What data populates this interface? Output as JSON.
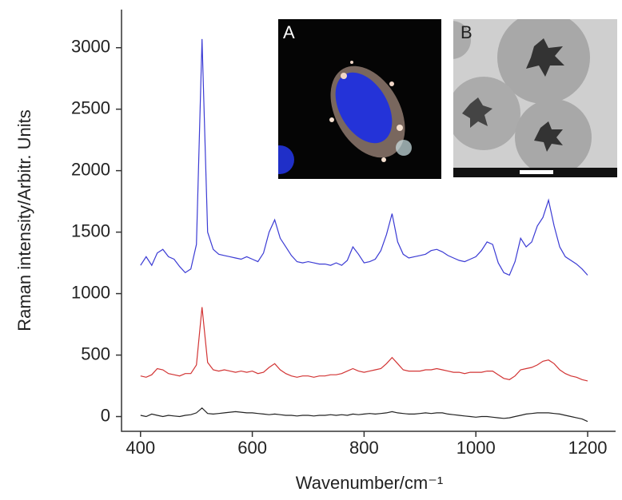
{
  "chart_data": {
    "type": "line",
    "y_label": "Raman intensity/Arbitr. Units",
    "x_label": "Wavenumber/cm⁻¹",
    "annotations": [
      "A",
      "B"
    ],
    "x": [
      400,
      410,
      420,
      430,
      440,
      450,
      460,
      470,
      480,
      490,
      500,
      510,
      520,
      530,
      540,
      550,
      560,
      570,
      580,
      590,
      600,
      610,
      620,
      630,
      640,
      650,
      660,
      670,
      680,
      690,
      700,
      710,
      720,
      730,
      740,
      750,
      760,
      770,
      780,
      790,
      800,
      810,
      820,
      830,
      840,
      850,
      860,
      870,
      880,
      890,
      900,
      910,
      920,
      930,
      940,
      950,
      960,
      970,
      980,
      990,
      1000,
      1010,
      1020,
      1030,
      1040,
      1050,
      1060,
      1070,
      1080,
      1090,
      1100,
      1110,
      1120,
      1130,
      1140,
      1150,
      1160,
      1170,
      1180,
      1190,
      1200
    ],
    "series": [
      {
        "color": "#3b3bd4",
        "values": [
          1230,
          1300,
          1230,
          1330,
          1360,
          1300,
          1280,
          1220,
          1170,
          1200,
          1400,
          3070,
          1500,
          1360,
          1320,
          1310,
          1300,
          1290,
          1280,
          1300,
          1280,
          1260,
          1330,
          1500,
          1600,
          1450,
          1380,
          1310,
          1260,
          1250,
          1260,
          1250,
          1240,
          1240,
          1230,
          1250,
          1230,
          1270,
          1380,
          1320,
          1250,
          1260,
          1280,
          1350,
          1480,
          1650,
          1420,
          1320,
          1290,
          1300,
          1310,
          1320,
          1350,
          1360,
          1340,
          1310,
          1290,
          1270,
          1260,
          1280,
          1300,
          1350,
          1420,
          1400,
          1250,
          1170,
          1150,
          1260,
          1450,
          1380,
          1420,
          1550,
          1620,
          1760,
          1550,
          1380,
          1300,
          1270,
          1240,
          1200,
          1150
        ]
      },
      {
        "color": "#d23434",
        "values": [
          330,
          320,
          340,
          390,
          380,
          350,
          340,
          330,
          350,
          350,
          420,
          890,
          440,
          380,
          370,
          380,
          370,
          360,
          370,
          360,
          370,
          350,
          360,
          400,
          430,
          380,
          350,
          330,
          320,
          330,
          330,
          320,
          330,
          330,
          340,
          340,
          350,
          370,
          390,
          370,
          360,
          370,
          380,
          390,
          430,
          480,
          430,
          380,
          370,
          370,
          370,
          380,
          380,
          390,
          380,
          370,
          360,
          360,
          350,
          360,
          360,
          360,
          370,
          370,
          340,
          310,
          300,
          330,
          380,
          390,
          400,
          420,
          450,
          460,
          430,
          380,
          350,
          330,
          320,
          300,
          290
        ]
      },
      {
        "color": "#222222",
        "values": [
          10,
          0,
          20,
          10,
          0,
          10,
          5,
          0,
          10,
          15,
          30,
          70,
          25,
          20,
          25,
          30,
          35,
          40,
          35,
          30,
          30,
          25,
          20,
          15,
          20,
          15,
          10,
          10,
          5,
          10,
          10,
          5,
          10,
          10,
          15,
          10,
          15,
          10,
          20,
          15,
          20,
          25,
          20,
          25,
          30,
          40,
          30,
          25,
          20,
          20,
          25,
          30,
          25,
          30,
          30,
          20,
          15,
          10,
          5,
          0,
          -5,
          0,
          0,
          -5,
          -10,
          -15,
          -10,
          0,
          10,
          20,
          25,
          30,
          30,
          30,
          25,
          20,
          10,
          0,
          -10,
          -20,
          -40
        ]
      }
    ],
    "xlim": [
      366,
      1250
    ],
    "xticks": [
      400,
      600,
      800,
      1000,
      1200
    ],
    "ylim": [
      -120,
      3310
    ],
    "yticks": [
      0,
      500,
      1000,
      1500,
      2000,
      2500,
      3000
    ],
    "grid": false
  }
}
